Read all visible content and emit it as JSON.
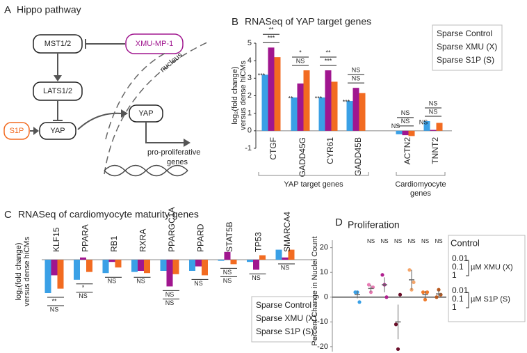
{
  "diagram": {
    "panel": "A",
    "title": "Hippo pathway",
    "nodes": [
      {
        "label": "MST1/2"
      },
      {
        "label": "XMU-MP-1"
      },
      {
        "label": "LATS1/2"
      },
      {
        "label": "YAP"
      },
      {
        "label": "S1P"
      },
      {
        "label": "YAP"
      }
    ],
    "compartment": "nucleus",
    "output": [
      "pro-proliferative",
      "genes"
    ]
  },
  "chart_data": [
    {
      "type": "bar",
      "panel": "B",
      "title": "RNASeq of  YAP target genes",
      "ylabel": [
        "log₂(fold change)",
        "versus dense hiCMs"
      ],
      "categories": [
        "CTGF",
        "GADD45G",
        "CYR61",
        "GADD45B",
        "ACTN2",
        "TNNT2"
      ],
      "series": [
        {
          "name": "Sparse Control",
          "color": "#3aa0e6",
          "values": [
            3.2,
            1.9,
            1.9,
            1.7,
            -0.2,
            0.55
          ]
        },
        {
          "name": "Sparse XMU (X)",
          "color": "#a0168f",
          "values": [
            4.75,
            2.7,
            3.45,
            2.45,
            -0.25,
            0.05
          ]
        },
        {
          "name": "Sparse S1P (S)",
          "color": "#f26b21",
          "values": [
            4.2,
            3.45,
            2.8,
            2.15,
            -0.3,
            0.45
          ]
        }
      ],
      "bar_labels": [
        "***",
        "**",
        "***",
        "***",
        "NS",
        "NS"
      ],
      "bracket_labels": [
        [
          "**",
          "***"
        ],
        [
          "*",
          "NS"
        ],
        [
          "**",
          "***"
        ],
        [
          "NS",
          "NS"
        ],
        [
          "NS",
          "NS"
        ],
        [
          "NS",
          "NS"
        ]
      ],
      "groups": [
        "YAP target genes",
        [
          "Cardiomyocyte",
          "genes"
        ]
      ],
      "ylim": [
        -1,
        5
      ],
      "yticks": [
        -1,
        0,
        1,
        2,
        3,
        4,
        5
      ]
    },
    {
      "type": "bar",
      "panel": "C",
      "title": "RNASeq of  cardiomyocyte maturity genes",
      "ylabel": [
        "log₂(fold change)",
        "versus dense hiCMs"
      ],
      "categories": [
        "KLF15",
        "PPARA",
        "RB1",
        "RXRA",
        "PPARGC1A",
        "PPARD",
        "STAT5B",
        "TP53",
        "SMARCA4"
      ],
      "series": [
        {
          "name": "Sparse Control",
          "color": "#3aa0e6",
          "values": [
            -1.5,
            -0.9,
            -0.6,
            -0.55,
            -0.5,
            -0.5,
            -0.05,
            -0.1,
            0.45
          ]
        },
        {
          "name": "Sparse XMU (X)",
          "color": "#a0168f",
          "values": [
            -0.7,
            0.1,
            -0.1,
            -0.5,
            -1.2,
            -0.3,
            0.35,
            -0.45,
            0.1
          ]
        },
        {
          "name": "Sparse S1P (S)",
          "color": "#f26b21",
          "values": [
            -1.3,
            -0.55,
            -0.35,
            -0.6,
            -0.65,
            -0.7,
            -0.2,
            0.2,
            0.45
          ]
        }
      ],
      "sig_labels": [
        [
          "**",
          "NS"
        ],
        [
          "*",
          "NS"
        ],
        [
          "NS"
        ],
        [
          "NS"
        ],
        [
          "NS",
          "NS"
        ],
        [
          "NS"
        ],
        [
          "NS",
          "NS"
        ],
        [
          "NS"
        ],
        [
          "NS"
        ]
      ],
      "ylim": [
        -2,
        1
      ]
    },
    {
      "type": "dot",
      "panel": "D",
      "title": "Proliferation",
      "ylabel": "Percent Change in Nuclei Count",
      "series": [
        {
          "name": "Control",
          "color": "#3aa0e6",
          "values": [
            2,
            2,
            -2
          ],
          "mean": 1,
          "error": 1.5,
          "sig": null
        },
        {
          "name": "0.01",
          "color": "#e87bb4",
          "values": [
            5,
            2,
            4
          ],
          "mean": 3.5,
          "error": 1.5,
          "sig": "NS"
        },
        {
          "name": "0.1",
          "color": "#b0208f",
          "values": [
            9,
            5,
            0
          ],
          "mean": 5,
          "error": 3,
          "sig": "NS"
        },
        {
          "name": "1",
          "color": "#6b0f2a",
          "values": [
            -11,
            -21,
            1
          ],
          "mean": -10,
          "error": 7,
          "sig": "NS"
        },
        {
          "name": "0.01",
          "color": "#f5a66b",
          "values": [
            11,
            3,
            6
          ],
          "mean": 7,
          "error": 4,
          "sig": "NS"
        },
        {
          "name": "0.1",
          "color": "#ef7a2a",
          "values": [
            2,
            -1,
            2
          ],
          "mean": 1,
          "error": 1.5,
          "sig": "NS"
        },
        {
          "name": "1",
          "color": "#b8581c",
          "values": [
            0,
            3,
            1
          ],
          "mean": 1.3,
          "error": 1.5,
          "sig": "NS"
        }
      ],
      "legend_groups": [
        {
          "label": "µM XMU (X)",
          "color": "#a0168f"
        },
        {
          "label": "µM S1P (S)",
          "color": "#f26b21"
        }
      ],
      "ylim": [
        -22,
        23
      ],
      "yticks": [
        -20,
        -10,
        0,
        10,
        20
      ]
    }
  ]
}
